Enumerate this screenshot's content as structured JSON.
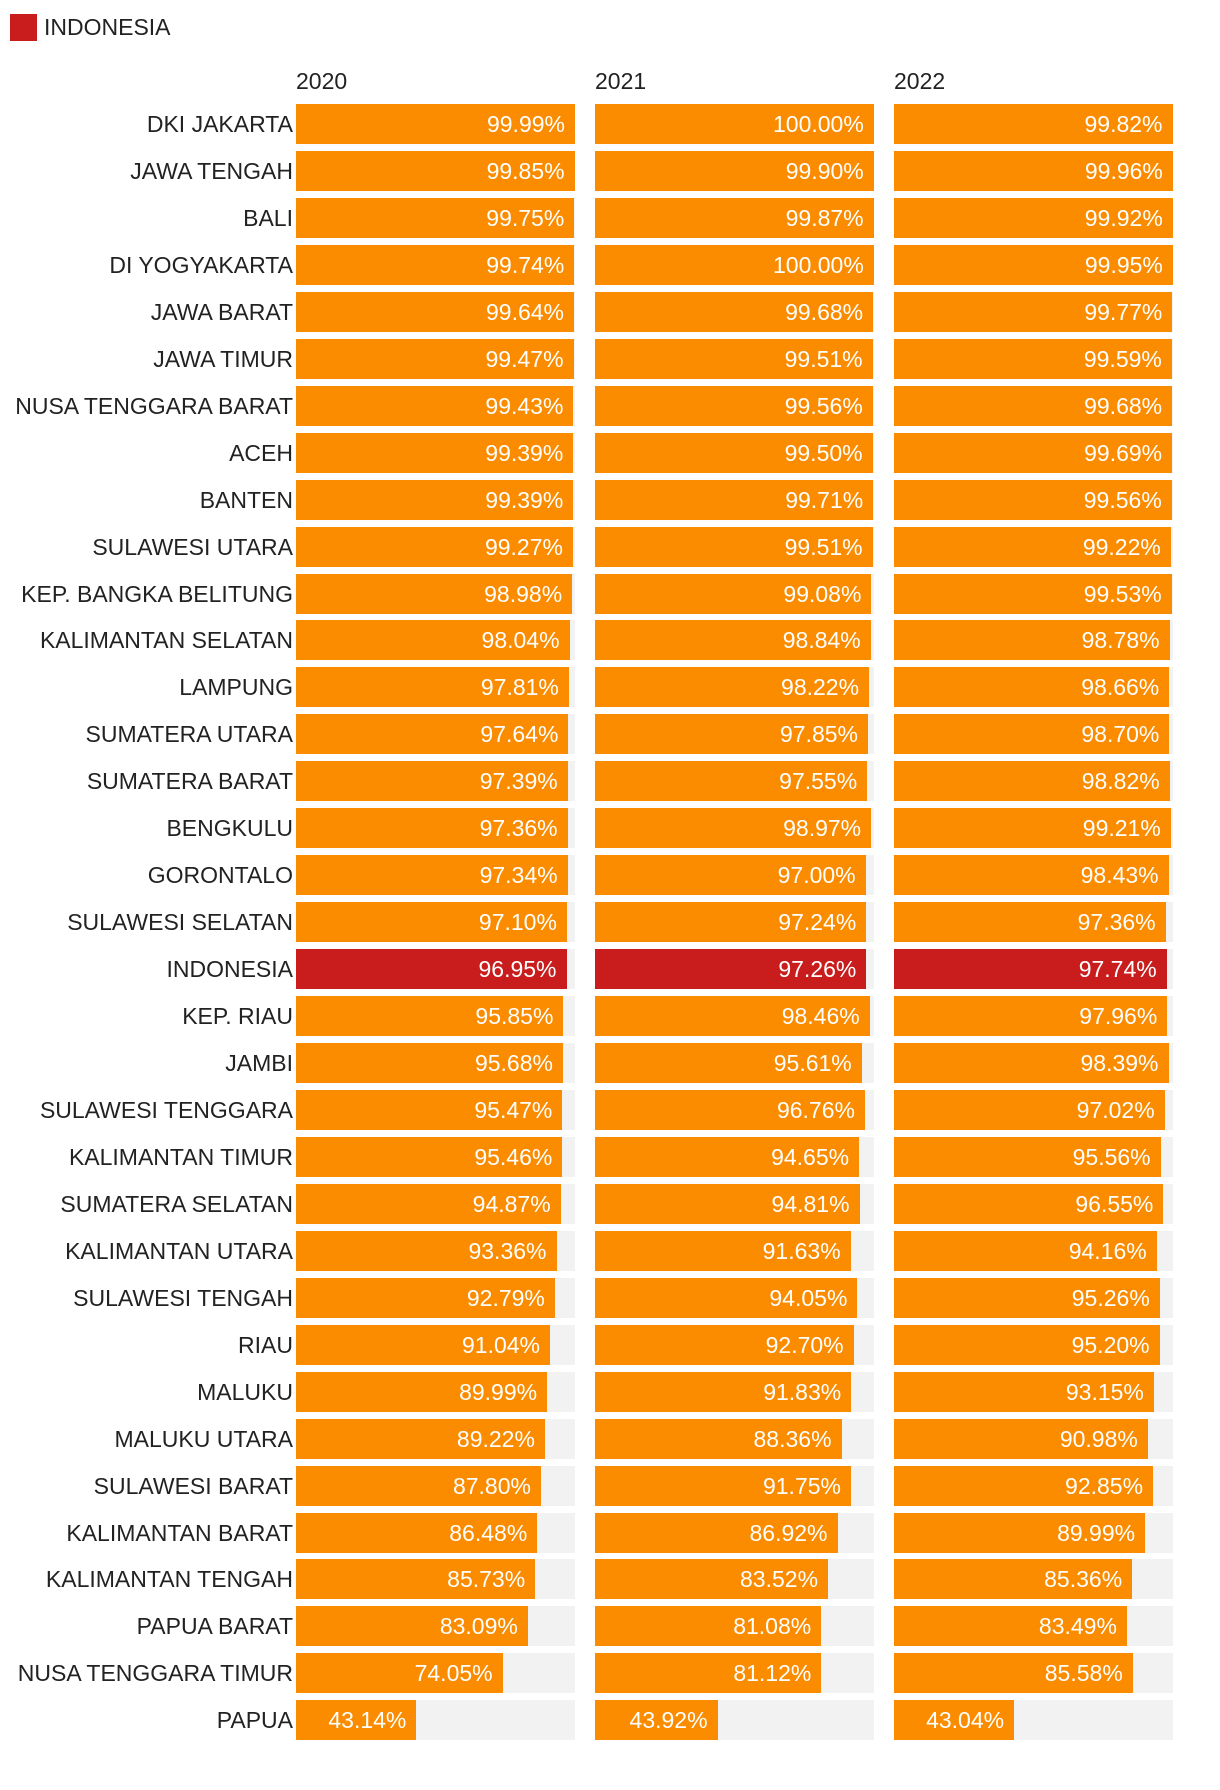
{
  "legend": {
    "label": "INDONESIA",
    "color": "#c91d1d"
  },
  "colors": {
    "bar": "#fb8c00",
    "highlight": "#c91d1d",
    "track": "#f2f2f2"
  },
  "chart_data": {
    "type": "bar",
    "orientation": "horizontal",
    "value_max": 100,
    "highlight_category": "INDONESIA",
    "categories": [
      "DKI JAKARTA",
      "JAWA TENGAH",
      "BALI",
      "DI YOGYAKARTA",
      "JAWA BARAT",
      "JAWA TIMUR",
      "NUSA TENGGARA BARAT",
      "ACEH",
      "BANTEN",
      "SULAWESI UTARA",
      "KEP. BANGKA BELITUNG",
      "KALIMANTAN SELATAN",
      "LAMPUNG",
      "SUMATERA UTARA",
      "SUMATERA BARAT",
      "BENGKULU",
      "GORONTALO",
      "SULAWESI SELATAN",
      "INDONESIA",
      "KEP. RIAU",
      "JAMBI",
      "SULAWESI TENGGARA",
      "KALIMANTAN TIMUR",
      "SUMATERA SELATAN",
      "KALIMANTAN UTARA",
      "SULAWESI TENGAH",
      "RIAU",
      "MALUKU",
      "MALUKU UTARA",
      "SULAWESI BARAT",
      "KALIMANTAN BARAT",
      "KALIMANTAN TENGAH",
      "PAPUA BARAT",
      "NUSA TENGGARA TIMUR",
      "PAPUA"
    ],
    "series": [
      {
        "name": "2020",
        "values": [
          99.99,
          99.85,
          99.75,
          99.74,
          99.64,
          99.47,
          99.43,
          99.39,
          99.39,
          99.27,
          98.98,
          98.04,
          97.81,
          97.64,
          97.39,
          97.36,
          97.34,
          97.1,
          96.95,
          95.85,
          95.68,
          95.47,
          95.46,
          94.87,
          93.36,
          92.79,
          91.04,
          89.99,
          89.22,
          87.8,
          86.48,
          85.73,
          83.09,
          74.05,
          43.14
        ],
        "labels": [
          "99.99%",
          "99.85%",
          "99.75%",
          "99.74%",
          "99.64%",
          "99.47%",
          "99.43%",
          "99.39%",
          "99.39%",
          "99.27%",
          "98.98%",
          "98.04%",
          "97.81%",
          "97.64%",
          "97.39%",
          "97.36%",
          "97.34%",
          "97.10%",
          "96.95%",
          "95.85%",
          "95.68%",
          "95.47%",
          "95.46%",
          "94.87%",
          "93.36%",
          "92.79%",
          "91.04%",
          "89.99%",
          "89.22%",
          "87.80%",
          "86.48%",
          "85.73%",
          "83.09%",
          "74.05%",
          "43.14%"
        ]
      },
      {
        "name": "2021",
        "values": [
          100.0,
          99.9,
          99.87,
          100.0,
          99.68,
          99.51,
          99.56,
          99.5,
          99.71,
          99.51,
          99.08,
          98.84,
          98.22,
          97.85,
          97.55,
          98.97,
          97.0,
          97.24,
          97.26,
          98.46,
          95.61,
          96.76,
          94.65,
          94.81,
          91.63,
          94.05,
          92.7,
          91.83,
          88.36,
          91.75,
          86.92,
          83.52,
          81.08,
          81.12,
          43.92
        ],
        "labels": [
          "100.00%",
          "99.90%",
          "99.87%",
          "100.00%",
          "99.68%",
          "99.51%",
          "99.56%",
          "99.50%",
          "99.71%",
          "99.51%",
          "99.08%",
          "98.84%",
          "98.22%",
          "97.85%",
          "97.55%",
          "98.97%",
          "97.00%",
          "97.24%",
          "97.26%",
          "98.46%",
          "95.61%",
          "96.76%",
          "94.65%",
          "94.81%",
          "91.63%",
          "94.05%",
          "92.70%",
          "91.83%",
          "88.36%",
          "91.75%",
          "86.92%",
          "83.52%",
          "81.08%",
          "81.12%",
          "43.92%"
        ]
      },
      {
        "name": "2022",
        "values": [
          99.82,
          99.96,
          99.92,
          99.95,
          99.77,
          99.59,
          99.68,
          99.69,
          99.56,
          99.22,
          99.53,
          98.78,
          98.66,
          98.7,
          98.82,
          99.21,
          98.43,
          97.36,
          97.74,
          97.96,
          98.39,
          97.02,
          95.56,
          96.55,
          94.16,
          95.26,
          95.2,
          93.15,
          90.98,
          92.85,
          89.99,
          85.36,
          83.49,
          85.58,
          43.04
        ],
        "labels": [
          "99.82%",
          "99.96%",
          "99.92%",
          "99.95%",
          "99.77%",
          "99.59%",
          "99.68%",
          "99.69%",
          "99.56%",
          "99.22%",
          "99.53%",
          "98.78%",
          "98.66%",
          "98.70%",
          "98.82%",
          "99.21%",
          "98.43%",
          "97.36%",
          "97.74%",
          "97.96%",
          "98.39%",
          "97.02%",
          "95.56%",
          "96.55%",
          "94.16%",
          "95.26%",
          "95.20%",
          "93.15%",
          "90.98%",
          "92.85%",
          "89.99%",
          "85.36%",
          "83.49%",
          "85.58%",
          "43.04%"
        ]
      }
    ]
  }
}
